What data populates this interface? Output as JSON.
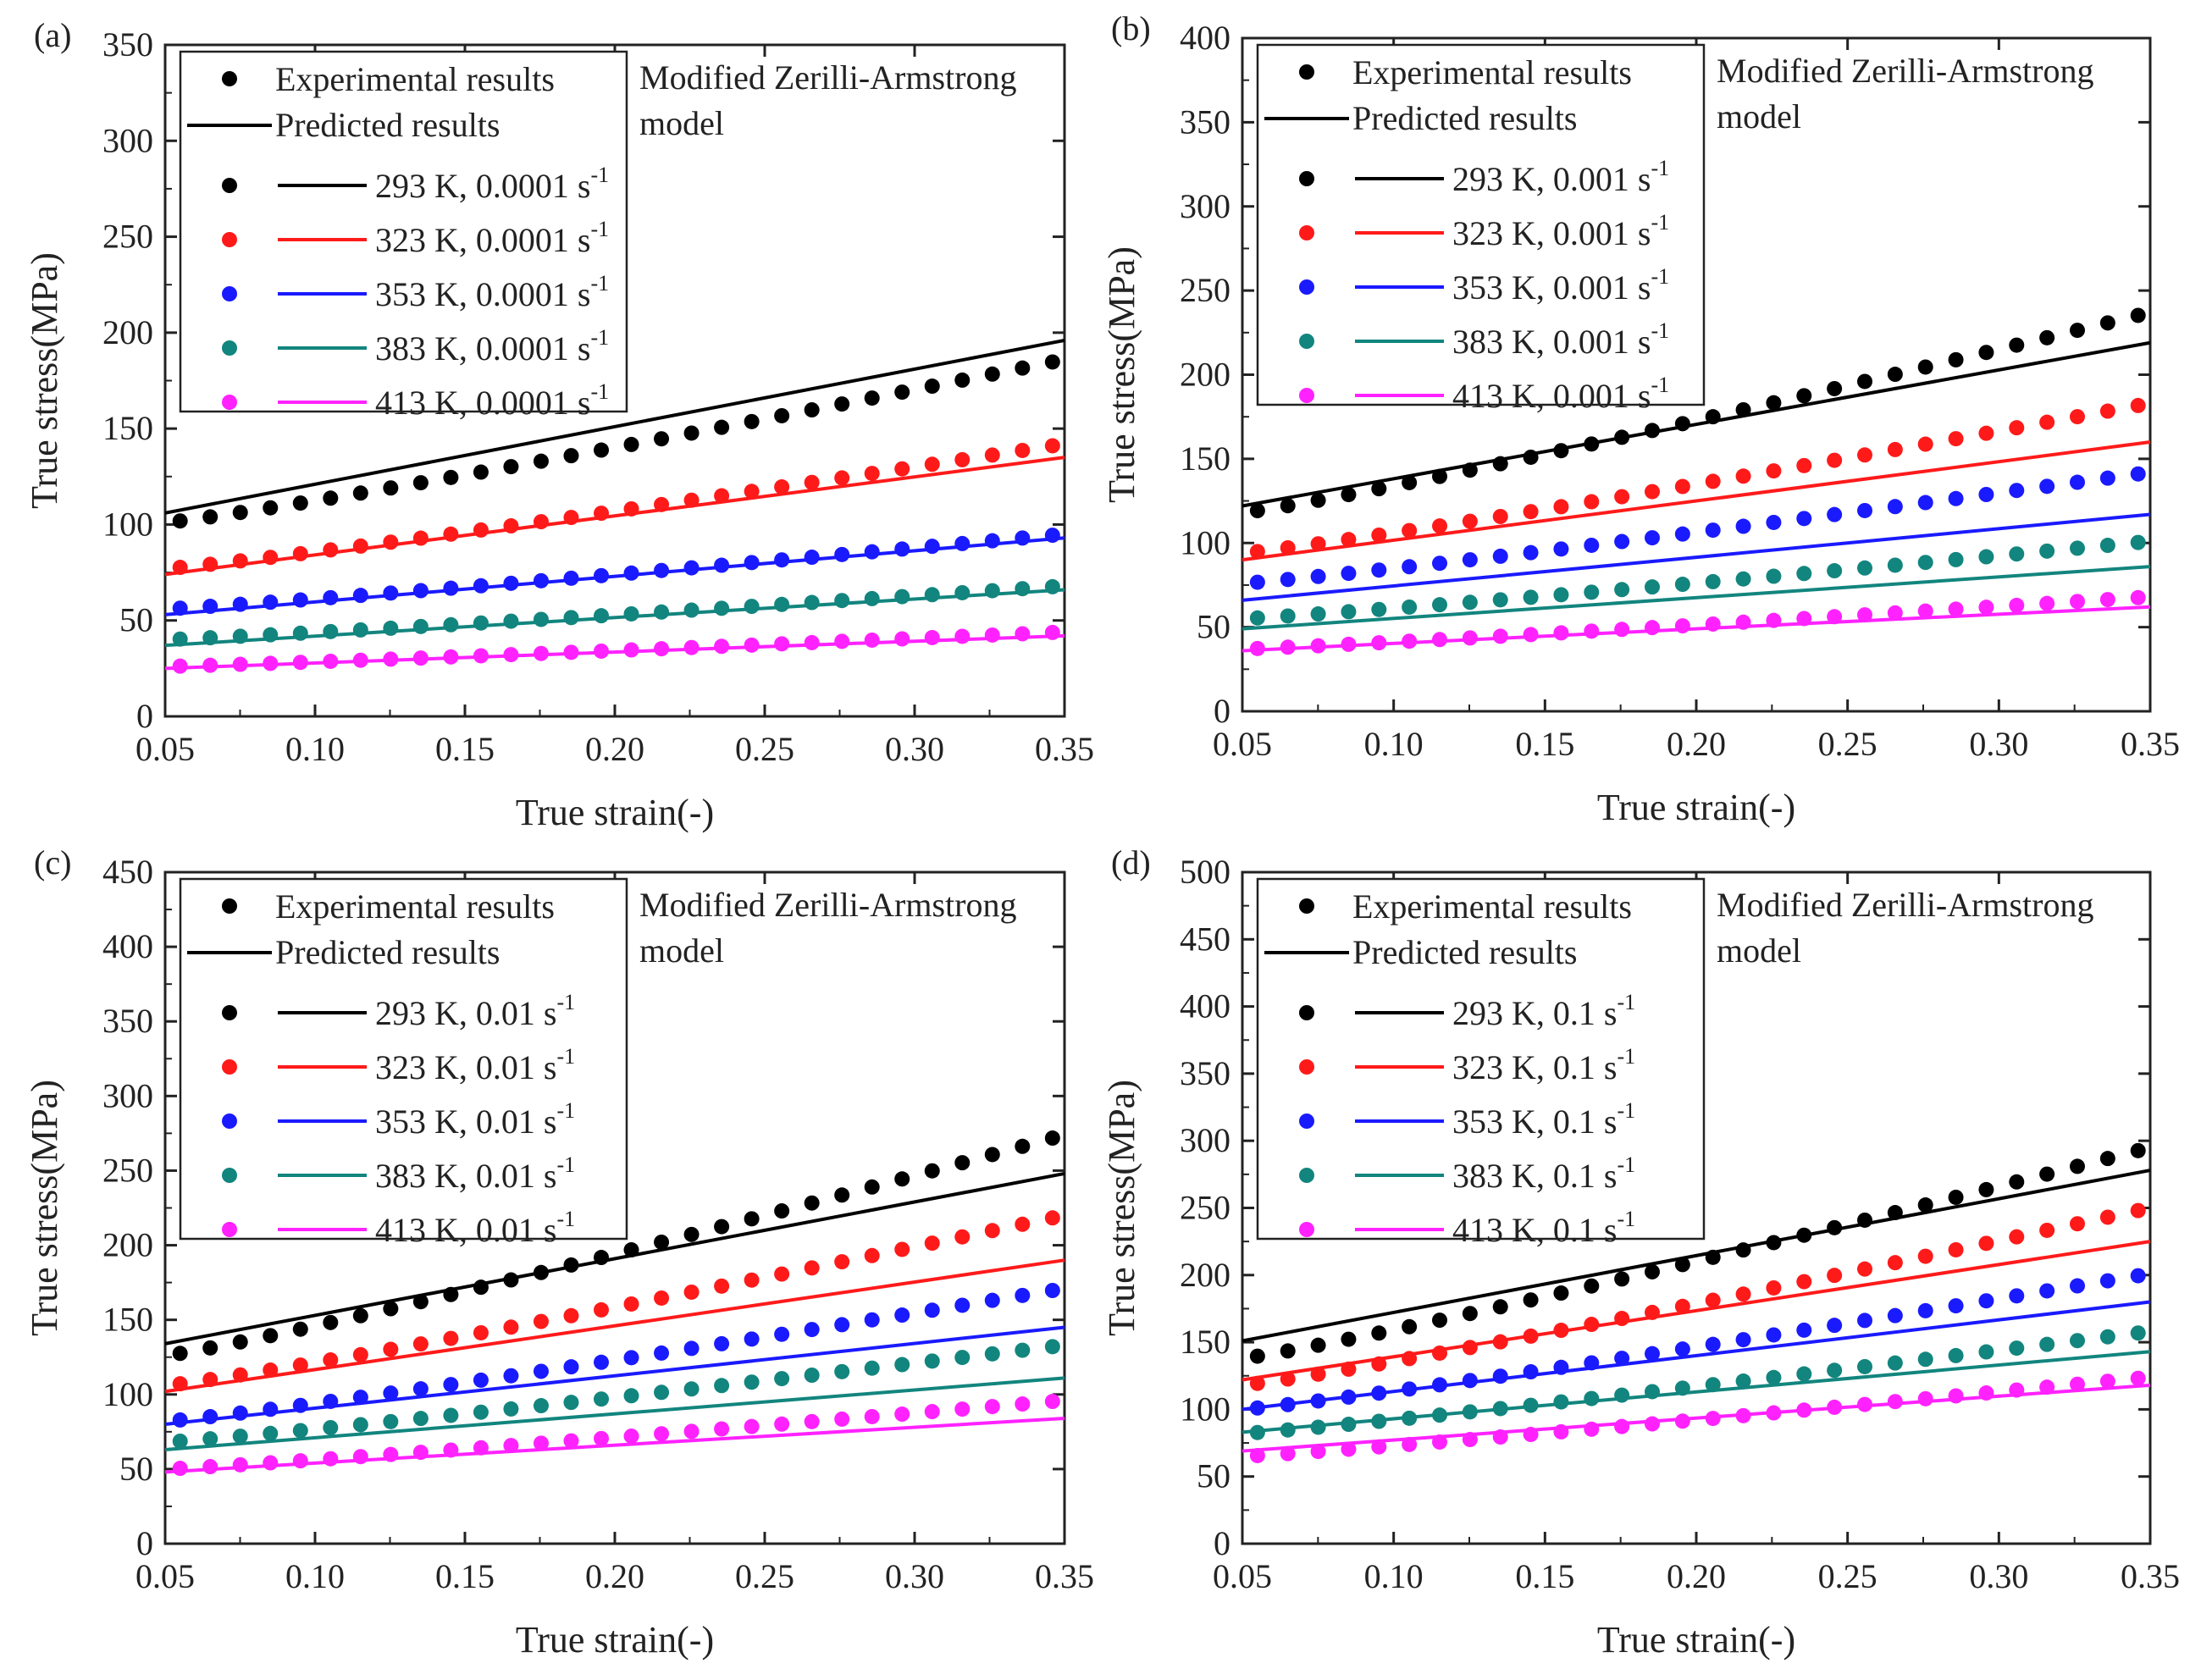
{
  "figure": {
    "legend_experimental": "Experimental results",
    "legend_predicted": "Predicted results",
    "model_line1": "Modified Zerilli-Armstrong",
    "model_line2": "model",
    "xlabel": "True strain(-)",
    "ylabel": "True stress(MPa)",
    "colors": {
      "293 K": "#000000",
      "323 K": "#ff1a1a",
      "353 K": "#1a1aff",
      "383 K": "#12857e",
      "413 K": "#ff22ff"
    }
  },
  "chart_data": [
    {
      "type": "line",
      "panel": "(a)",
      "xlim": [
        0.05,
        0.35
      ],
      "ylim": [
        0,
        350
      ],
      "xticks": [
        "0.05",
        "0.10",
        "0.15",
        "0.20",
        "0.25",
        "0.30",
        "0.35"
      ],
      "yticks": [
        "0",
        "50",
        "100",
        "150",
        "200",
        "250",
        "300",
        "350"
      ],
      "strain_rate": "0.0001",
      "series": [
        {
          "name": "293 K, 0.0001 s",
          "temp": "293 K",
          "exp": [
            101,
            186
          ],
          "pred": [
            106,
            196
          ]
        },
        {
          "name": "323 K, 0.0001 s",
          "temp": "323 K",
          "exp": [
            77,
            142
          ],
          "pred": [
            74,
            135
          ]
        },
        {
          "name": "353 K, 0.0001 s",
          "temp": "353 K",
          "exp": [
            56,
            95
          ],
          "pred": [
            53,
            93
          ]
        },
        {
          "name": "383 K, 0.0001 s",
          "temp": "383 K",
          "exp": [
            40,
            68
          ],
          "pred": [
            37,
            66
          ]
        },
        {
          "name": "413 K, 0.0001 s",
          "temp": "413 K",
          "exp": [
            26,
            44
          ],
          "pred": [
            25,
            42
          ]
        }
      ]
    },
    {
      "type": "line",
      "panel": "(b)",
      "xlim": [
        0.05,
        0.35
      ],
      "ylim": [
        0,
        400
      ],
      "xticks": [
        "0.05",
        "0.10",
        "0.15",
        "0.20",
        "0.25",
        "0.30",
        "0.35"
      ],
      "yticks": [
        "0",
        "50",
        "100",
        "150",
        "200",
        "250",
        "300",
        "350",
        "400"
      ],
      "strain_rate": "0.001",
      "series": [
        {
          "name": "293 K, 0.001 s",
          "temp": "293 K",
          "exp": [
            118,
            237
          ],
          "pred": [
            122,
            219
          ]
        },
        {
          "name": "323 K, 0.001 s",
          "temp": "323 K",
          "exp": [
            94,
            183
          ],
          "pred": [
            90,
            160
          ]
        },
        {
          "name": "353 K, 0.001 s",
          "temp": "353 K",
          "exp": [
            76,
            142
          ],
          "pred": [
            66,
            117
          ]
        },
        {
          "name": "383 K, 0.001 s",
          "temp": "383 K",
          "exp": [
            55,
            101
          ],
          "pred": [
            49,
            86
          ]
        },
        {
          "name": "413 K, 0.001 s",
          "temp": "413 K",
          "exp": [
            37,
            68
          ],
          "pred": [
            36,
            62
          ]
        }
      ]
    },
    {
      "type": "line",
      "panel": "(c)",
      "xlim": [
        0.05,
        0.35
      ],
      "ylim": [
        0,
        450
      ],
      "xticks": [
        "0.05",
        "0.10",
        "0.15",
        "0.20",
        "0.25",
        "0.30",
        "0.35"
      ],
      "yticks": [
        "0",
        "50",
        "100",
        "150",
        "200",
        "250",
        "300",
        "350",
        "400",
        "450"
      ],
      "strain_rate": "0.01",
      "series": [
        {
          "name": "293 K, 0.01 s",
          "temp": "293 K",
          "exp": [
            126,
            274
          ],
          "pred": [
            134,
            248
          ]
        },
        {
          "name": "323 K, 0.01 s",
          "temp": "323 K",
          "exp": [
            106,
            220
          ],
          "pred": [
            102,
            190
          ]
        },
        {
          "name": "353 K, 0.01 s",
          "temp": "353 K",
          "exp": [
            82,
            171
          ],
          "pred": [
            80,
            145
          ]
        },
        {
          "name": "383 K, 0.01 s",
          "temp": "383 K",
          "exp": [
            68,
            133
          ],
          "pred": [
            63,
            111
          ]
        },
        {
          "name": "413 K, 0.01 s",
          "temp": "413 K",
          "exp": [
            50,
            96
          ],
          "pred": [
            48,
            84
          ]
        }
      ]
    },
    {
      "type": "line",
      "panel": "(d)",
      "xlim": [
        0.05,
        0.35
      ],
      "ylim": [
        0,
        500
      ],
      "xticks": [
        "0.05",
        "0.10",
        "0.15",
        "0.20",
        "0.25",
        "0.30",
        "0.35"
      ],
      "yticks": [
        "0",
        "50",
        "100",
        "150",
        "200",
        "250",
        "300",
        "350",
        "400",
        "450",
        "500"
      ],
      "strain_rate": "0.1",
      "series": [
        {
          "name": "293 K, 0.1 s",
          "temp": "293 K",
          "exp": [
            138,
            295
          ],
          "pred": [
            151,
            278
          ]
        },
        {
          "name": "323 K, 0.1 s",
          "temp": "323 K",
          "exp": [
            118,
            250
          ],
          "pred": [
            122,
            225
          ]
        },
        {
          "name": "353 K, 0.1 s",
          "temp": "353 K",
          "exp": [
            100,
            201
          ],
          "pred": [
            100,
            180
          ]
        },
        {
          "name": "383 K, 0.1 s",
          "temp": "383 K",
          "exp": [
            82,
            158
          ],
          "pred": [
            83,
            143
          ]
        },
        {
          "name": "413 K, 0.1 s",
          "temp": "413 K",
          "exp": [
            65,
            124
          ],
          "pred": [
            69,
            118
          ]
        }
      ]
    }
  ]
}
